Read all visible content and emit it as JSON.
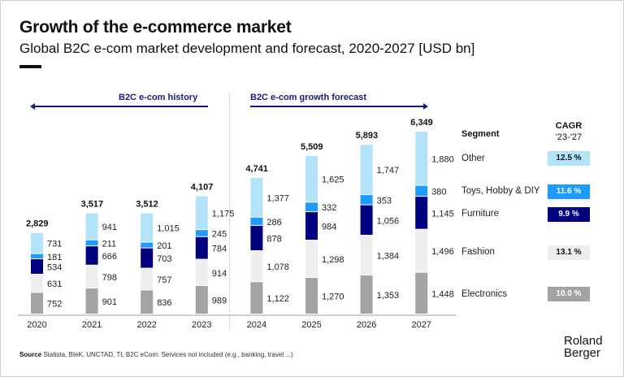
{
  "header": {
    "title": "Growth of the e-commerce market",
    "subtitle": "Global B2C e-com market development and forecast, 2020-2027 [USD bn]"
  },
  "sections": {
    "history": "B2C e-com history",
    "forecast": "B2C e-com growth forecast"
  },
  "legend": {
    "segment_header": "Segment",
    "cagr_header": "CAGR",
    "cagr_period": "'23-'27",
    "items": [
      {
        "name": "Other",
        "cagr": "12.5 %",
        "color": "#b3e3fb",
        "text_color": "#111111"
      },
      {
        "name": "Toys, Hobby & DIY",
        "cagr": "11.6 %",
        "color": "#1e9bff",
        "text_color": "#ffffff"
      },
      {
        "name": "Furniture",
        "cagr": "9.9 %",
        "color": "#00007f",
        "text_color": "#ffffff"
      },
      {
        "name": "Fashion",
        "cagr": "13.1 %",
        "color": "#eeeeee",
        "text_color": "#111111"
      },
      {
        "name": "Electronics",
        "cagr": "10.0 %",
        "color": "#a3a3a3",
        "text_color": "#ffffff"
      }
    ]
  },
  "footer": {
    "source_label": "Source",
    "source_text": "Statista, BIeK, UNCTAD, TI, B2C eCom: Services not included (e.g., banking, travel ...)",
    "logo_line1": "Roland",
    "logo_line2": "Berger"
  },
  "chart_data": {
    "type": "bar",
    "stacked": true,
    "title": "Growth of the e-commerce market",
    "subtitle": "Global B2C e-com market development and forecast, 2020-2027 [USD bn]",
    "xlabel": "",
    "ylabel": "USD bn",
    "ylim": [
      0,
      6349
    ],
    "grid": false,
    "legend_position": "right",
    "categories": [
      "2020",
      "2021",
      "2022",
      "2023",
      "2024",
      "2025",
      "2026",
      "2027"
    ],
    "totals": [
      "2,829",
      "3,517",
      "3,512",
      "4,107",
      "4,741",
      "5,509",
      "5,893",
      "6,349"
    ],
    "series": [
      {
        "name": "Electronics",
        "color": "#a3a3a3",
        "values": [
          752,
          901,
          836,
          989,
          1122,
          1270,
          1353,
          1448
        ]
      },
      {
        "name": "Fashion",
        "color": "#eeeeee",
        "values": [
          631,
          798,
          757,
          914,
          1078,
          1298,
          1384,
          1496
        ]
      },
      {
        "name": "Furniture",
        "color": "#00007f",
        "values": [
          534,
          666,
          703,
          784,
          878,
          984,
          1056,
          1145
        ]
      },
      {
        "name": "Toys, Hobby & DIY",
        "color": "#1e9bff",
        "values": [
          181,
          211,
          201,
          245,
          286,
          332,
          353,
          380
        ]
      },
      {
        "name": "Other",
        "color": "#b3e3fb",
        "values": [
          731,
          941,
          1015,
          1175,
          1377,
          1625,
          1747,
          1880
        ]
      }
    ],
    "annotations": [
      "B2C e-com history",
      "B2C e-com growth forecast"
    ]
  }
}
